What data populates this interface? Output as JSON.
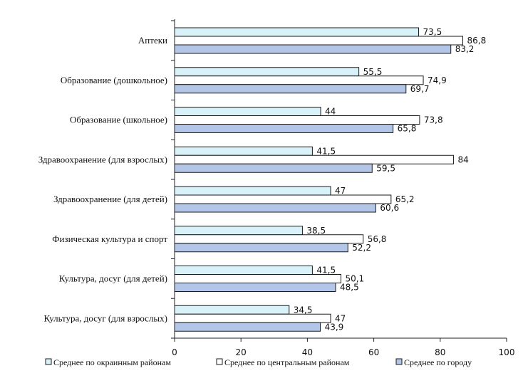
{
  "chart_data": {
    "type": "bar",
    "orientation": "horizontal",
    "categories": [
      "Аптеки",
      "Образование (дошкольное)",
      "Образование (школьное)",
      "Здравоохранение (для взрослых)",
      "Здравоохранение (для детей)",
      "Физическая культура и спорт",
      "Культура, досуг (для детей)",
      "Культура, досуг (для взрослых)"
    ],
    "series": [
      {
        "name": "Среднее по окраинным районам",
        "values": [
          73.5,
          55.5,
          44,
          41.5,
          47,
          38.5,
          41.5,
          34.5
        ],
        "labels": [
          "73,5",
          "55,5",
          "44",
          "41,5",
          "47",
          "38,5",
          "41,5",
          "34,5"
        ],
        "color": "#d9f1f8"
      },
      {
        "name": "Среднее по центральным районам",
        "values": [
          86.8,
          74.9,
          73.8,
          84,
          65.2,
          56.8,
          50.1,
          47
        ],
        "labels": [
          "86,8",
          "74,9",
          "73,8",
          "84",
          "65,2",
          "56,8",
          "50,1",
          "47"
        ],
        "color": "#ffffff"
      },
      {
        "name": "Среднее по городу",
        "values": [
          83.2,
          69.7,
          65.8,
          59.5,
          60.6,
          52.2,
          48.5,
          43.9
        ],
        "labels": [
          "83,2",
          "69,7",
          "65,8",
          "59,5",
          "60,6",
          "52,2",
          "48,5",
          "43,9"
        ],
        "color": "#b4c6e7"
      }
    ],
    "xlim": [
      0,
      100
    ],
    "xticks": [
      "0",
      "20",
      "40",
      "60",
      "80",
      "100"
    ],
    "grid": false,
    "legend": "bottom"
  }
}
